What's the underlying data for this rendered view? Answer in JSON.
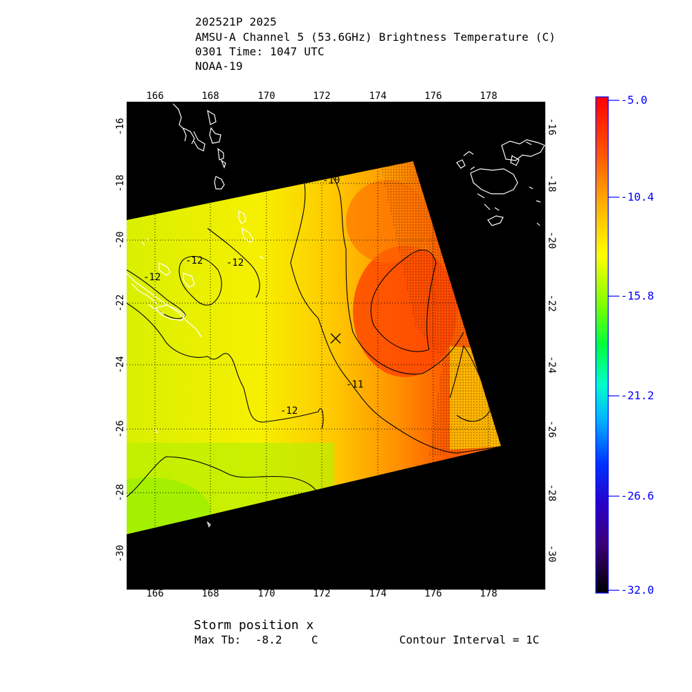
{
  "header": {
    "storm_id": "202521P 2025",
    "product": "AMSU-A Channel 5 (53.6GHz) Brightness Temperature (C)",
    "time": "0301 Time: 1047 UTC",
    "satellite": "NOAA-19"
  },
  "map": {
    "lon_ticks": [
      "166",
      "168",
      "170",
      "172",
      "174",
      "176",
      "178"
    ],
    "lat_ticks": [
      "-16",
      "-18",
      "-20",
      "-22",
      "-24",
      "-26",
      "-28",
      "-30"
    ],
    "lon_range": [
      165,
      180
    ],
    "lat_range": [
      -31,
      -15.2
    ],
    "contour_labels": [
      "-10",
      "-12",
      "-12",
      "-12",
      "-11",
      "-12"
    ],
    "storm_marker": {
      "symbol": "x",
      "lon": 172.5,
      "lat": -23.1
    },
    "colors": {
      "background": "#000000",
      "grid": "#000000",
      "coast": "#ffffff"
    }
  },
  "colorbar": {
    "labels": [
      "-5.0",
      "-10.4",
      "-15.8",
      "-21.2",
      "-26.6",
      "-32.0"
    ],
    "label_color": "#0000ff",
    "stops": [
      "#ff0000",
      "#ff5a00",
      "#ffb400",
      "#ffff00",
      "#7dff00",
      "#00ff3c",
      "#00ffc8",
      "#00b4ff",
      "#0032ff",
      "#2800c8",
      "#3c0078",
      "#000000"
    ]
  },
  "footer": {
    "storm_position": "Storm position x",
    "max_tb_label": "Max Tb:",
    "max_tb_value": "-8.2",
    "max_tb_unit": "C",
    "contour_interval": "Contour Interval = 1C"
  }
}
